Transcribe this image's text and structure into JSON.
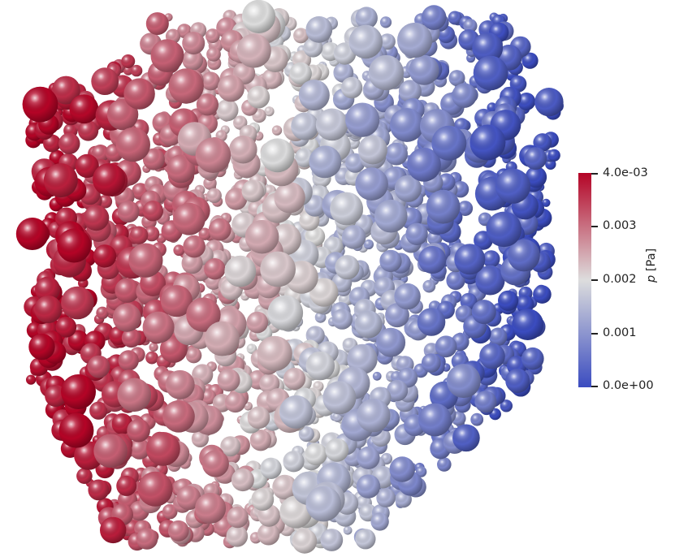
{
  "scalar_field": {
    "symbol": "p",
    "unit": "[Pa]",
    "min": 0.0,
    "max": 0.004
  },
  "colorbar": {
    "colormap": "Cool to Warm",
    "color_low": "#3b4cc0",
    "color_mid": "#dddddd",
    "color_high": "#b40426",
    "ticks": [
      {
        "value": 0.004,
        "label": "4.0e-03"
      },
      {
        "value": 0.003,
        "label": "0.003"
      },
      {
        "value": 0.002,
        "label": "0.002"
      },
      {
        "value": 0.001,
        "label": "0.001"
      },
      {
        "value": 0.0,
        "label": "0.0e+00"
      }
    ]
  },
  "render": {
    "object": "sphere packing",
    "background": "#ffffff"
  }
}
